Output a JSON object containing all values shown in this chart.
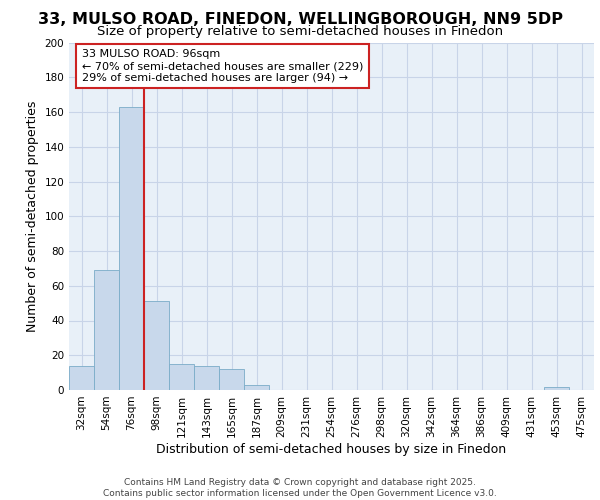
{
  "title": "33, MULSO ROAD, FINEDON, WELLINGBOROUGH, NN9 5DP",
  "subtitle": "Size of property relative to semi-detached houses in Finedon",
  "xlabel": "Distribution of semi-detached houses by size in Finedon",
  "ylabel": "Number of semi-detached properties",
  "bin_labels": [
    "32sqm",
    "54sqm",
    "76sqm",
    "98sqm",
    "121sqm",
    "143sqm",
    "165sqm",
    "187sqm",
    "209sqm",
    "231sqm",
    "254sqm",
    "276sqm",
    "298sqm",
    "320sqm",
    "342sqm",
    "364sqm",
    "386sqm",
    "409sqm",
    "431sqm",
    "453sqm",
    "475sqm"
  ],
  "bar_values": [
    14,
    69,
    163,
    51,
    15,
    14,
    12,
    3,
    0,
    0,
    0,
    0,
    0,
    0,
    0,
    0,
    0,
    0,
    0,
    2,
    0
  ],
  "bar_color": "#c8d8eb",
  "bar_edge_color": "#7aacc8",
  "grid_color": "#c8d4e8",
  "background_color": "#e8f0f8",
  "vline_x_index": 2.5,
  "vline_color": "#cc2222",
  "annotation_text": "33 MULSO ROAD: 96sqm\n← 70% of semi-detached houses are smaller (229)\n29% of semi-detached houses are larger (94) →",
  "annotation_box_color": "white",
  "annotation_box_edgecolor": "#cc2222",
  "footer_text": "Contains HM Land Registry data © Crown copyright and database right 2025.\nContains public sector information licensed under the Open Government Licence v3.0.",
  "ylim": [
    0,
    200
  ],
  "yticks": [
    0,
    20,
    40,
    60,
    80,
    100,
    120,
    140,
    160,
    180,
    200
  ],
  "title_fontsize": 11.5,
  "subtitle_fontsize": 9.5,
  "axis_label_fontsize": 9,
  "tick_fontsize": 7.5,
  "footer_fontsize": 6.5,
  "annot_fontsize": 8.0
}
